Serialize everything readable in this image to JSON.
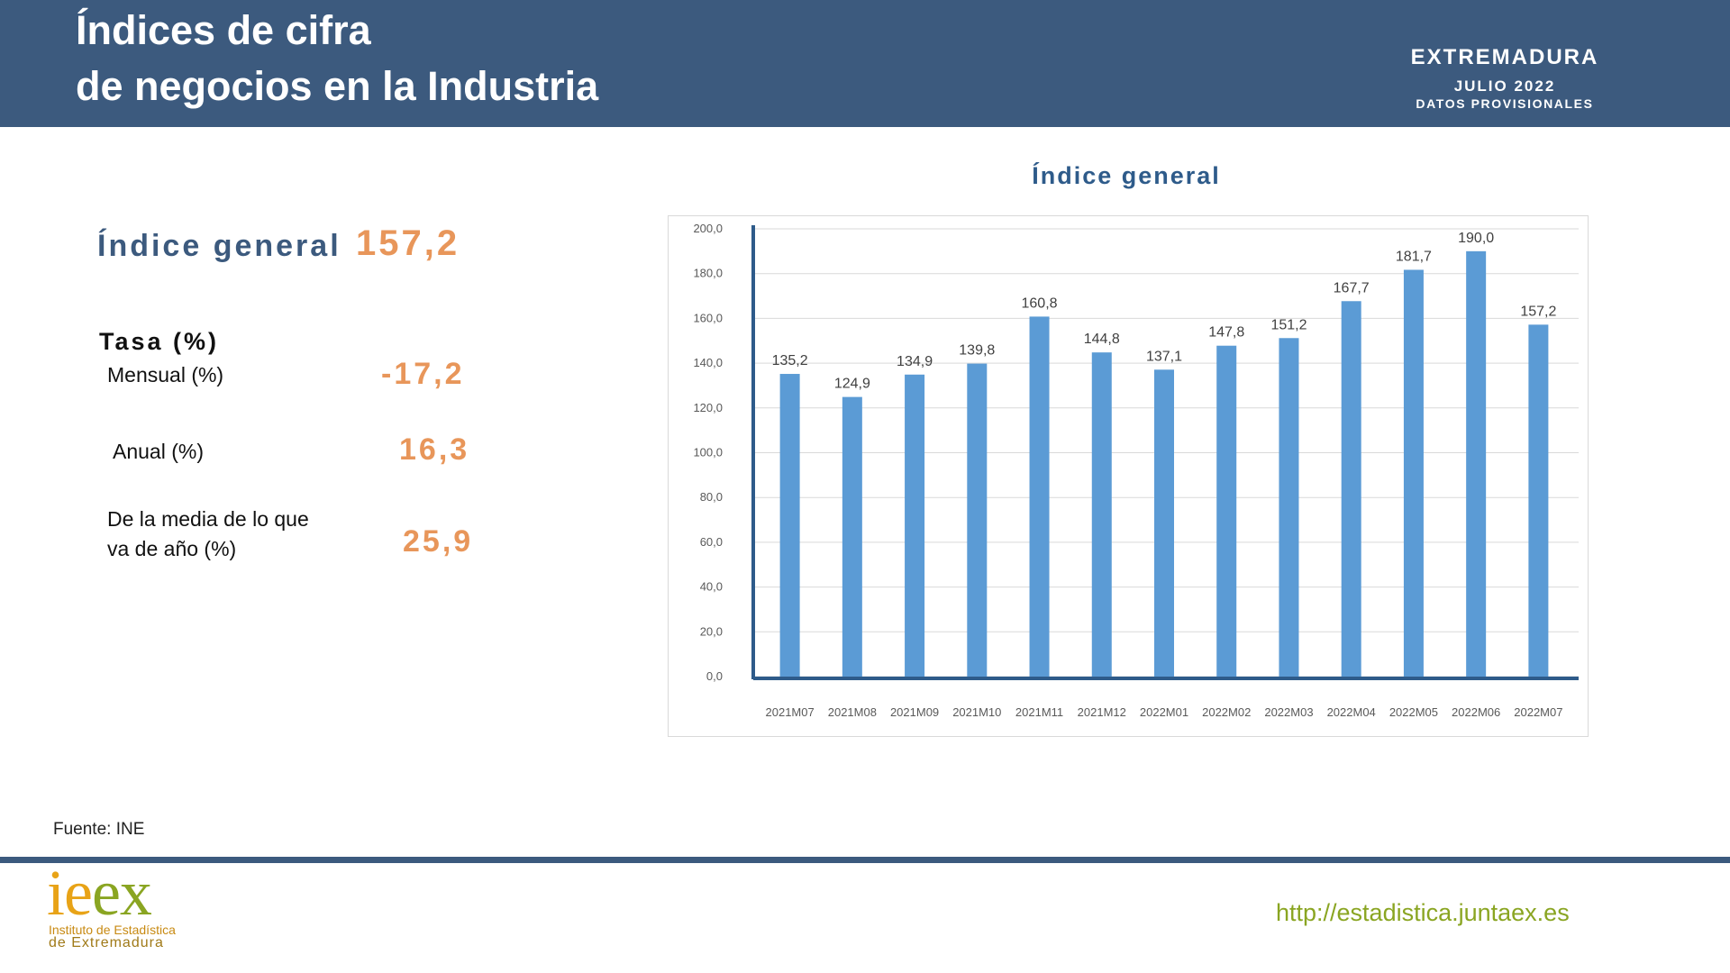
{
  "header": {
    "title_line1": "Índices de cifra",
    "title_line2": "de negocios en la Industria",
    "region": "EXTREMADURA",
    "period": "JULIO 2022",
    "status": "DATOS PROVISIONALES"
  },
  "summary": {
    "index_label": "Índice general",
    "index_value": "157,2",
    "rates_title": "Tasa (%)",
    "rates": [
      {
        "label": "Mensual (%)",
        "value": "-17,2"
      },
      {
        "label": "Anual (%)",
        "value": "16,3"
      },
      {
        "label_line1": "De la media de   lo que",
        "label_line2": "va de año  (%)",
        "value": "25,9"
      }
    ]
  },
  "chart_data": {
    "type": "bar",
    "title": "Índice general",
    "categories": [
      "2021M07",
      "2021M08",
      "2021M09",
      "2021M10",
      "2021M11",
      "2021M12",
      "2022M01",
      "2022M02",
      "2022M03",
      "2022M04",
      "2022M05",
      "2022M06",
      "2022M07"
    ],
    "values": [
      135.2,
      124.9,
      134.9,
      139.8,
      160.8,
      144.8,
      137.1,
      147.8,
      151.2,
      167.7,
      181.7,
      190.0,
      157.2
    ],
    "value_labels": [
      "135,2",
      "124,9",
      "134,9",
      "139,8",
      "160,8",
      "144,8",
      "137,1",
      "147,8",
      "151,2",
      "167,7",
      "181,7",
      "190,0",
      "157,2"
    ],
    "ylim": [
      0,
      200
    ],
    "yticks": [
      "0,0",
      "20,0",
      "40,0",
      "60,0",
      "80,0",
      "100,0",
      "120,0",
      "140,0",
      "160,0",
      "180,0",
      "200,0"
    ],
    "grid": true,
    "bar_color": "#5b9bd5",
    "axis_color": "#2e5b8a"
  },
  "footer": {
    "source": "Fuente: INE",
    "logo_text_1": "ie",
    "logo_text_2": "ex",
    "logo_sub1": "Instituto de Estadística",
    "logo_sub2": "de Extremadura",
    "url": "http://estadistica.juntaex.es"
  }
}
